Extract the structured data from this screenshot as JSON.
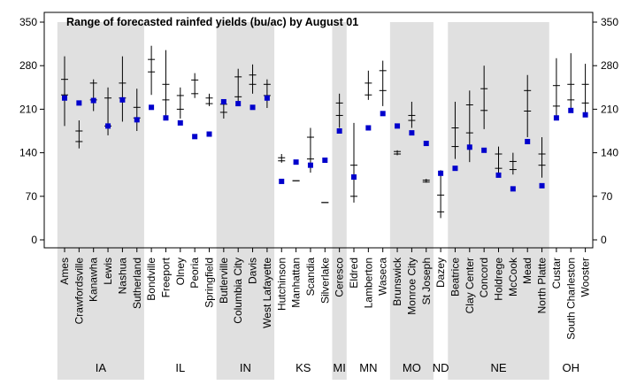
{
  "chart_data": {
    "type": "range",
    "title": "Range of forecasted rainfed yields (bu/ac) by August 01",
    "ylim": [
      0,
      350
    ],
    "yticks": [
      0,
      70,
      140,
      210,
      280,
      350
    ],
    "colors": {
      "marker": "#0000cc",
      "range": "#000000",
      "band": "#e0e0e0"
    },
    "groups": [
      {
        "state": "IA",
        "sites": [
          {
            "name": "Ames",
            "min": 183,
            "q1": 233,
            "q3": 258,
            "max": 295,
            "point": 228
          },
          {
            "name": "Crawfordsville",
            "min": 147,
            "q1": 158,
            "q3": 175,
            "max": 192,
            "point": 220
          },
          {
            "name": "Kanawha",
            "min": 207,
            "q1": 225,
            "q3": 252,
            "max": 258,
            "point": 224
          },
          {
            "name": "Lewis",
            "min": 168,
            "q1": 183,
            "q3": 228,
            "max": 245,
            "point": 183
          },
          {
            "name": "Nashua",
            "min": 190,
            "q1": 228,
            "q3": 252,
            "max": 295,
            "point": 225
          },
          {
            "name": "Sutherland",
            "min": 175,
            "q1": 196,
            "q3": 213,
            "max": 243,
            "point": 193
          }
        ]
      },
      {
        "state": "IL",
        "sites": [
          {
            "name": "Bondville",
            "min": 233,
            "q1": 270,
            "q3": 290,
            "max": 312,
            "point": 213
          },
          {
            "name": "Freeport",
            "min": 193,
            "q1": 225,
            "q3": 250,
            "max": 305,
            "point": 196
          },
          {
            "name": "Olney",
            "min": 195,
            "q1": 210,
            "q3": 232,
            "max": 245,
            "point": 188
          },
          {
            "name": "Peoria",
            "min": 228,
            "q1": 235,
            "q3": 257,
            "max": 268,
            "point": 166
          },
          {
            "name": "Springfield",
            "min": 215,
            "q1": 219,
            "q3": 228,
            "max": 235,
            "point": 170
          }
        ]
      },
      {
        "state": "IN",
        "sites": [
          {
            "name": "Butlerville",
            "min": 195,
            "q1": 205,
            "q3": 218,
            "max": 222,
            "point": 222
          },
          {
            "name": "Columbia City",
            "min": 220,
            "q1": 230,
            "q3": 262,
            "max": 275,
            "point": 219
          },
          {
            "name": "Davis",
            "min": 235,
            "q1": 250,
            "q3": 265,
            "max": 282,
            "point": 213
          },
          {
            "name": "West Lafayette",
            "min": 212,
            "q1": 232,
            "q3": 250,
            "max": 258,
            "point": 228
          }
        ]
      },
      {
        "state": "KS",
        "sites": [
          {
            "name": "Hutchinson",
            "min": 124,
            "q1": 127,
            "q3": 132,
            "max": 138,
            "point": 94
          },
          {
            "name": "Manhattan",
            "min": 95,
            "q1": 95,
            "q3": 95,
            "max": 95,
            "point": 125
          },
          {
            "name": "Scandia",
            "min": 108,
            "q1": 130,
            "q3": 165,
            "max": 180,
            "point": 120
          },
          {
            "name": "Silverlake",
            "min": 60,
            "q1": 60,
            "q3": 60,
            "max": 60,
            "point": 128
          }
        ]
      },
      {
        "state": "MI",
        "sites": [
          {
            "name": "Ceresco",
            "min": 180,
            "q1": 200,
            "q3": 220,
            "max": 235,
            "point": 175
          }
        ]
      },
      {
        "state": "MN",
        "sites": [
          {
            "name": "Eldred",
            "min": 60,
            "q1": 70,
            "q3": 120,
            "max": 188,
            "point": 101
          },
          {
            "name": "Lamberton",
            "min": 225,
            "q1": 233,
            "q3": 252,
            "max": 272,
            "point": 180
          },
          {
            "name": "Waseca",
            "min": 215,
            "q1": 240,
            "q3": 272,
            "max": 288,
            "point": 203
          }
        ]
      },
      {
        "state": "MO",
        "sites": [
          {
            "name": "Brunswick",
            "min": 136,
            "q1": 138,
            "q3": 142,
            "max": 144,
            "point": 183
          },
          {
            "name": "Monroe City",
            "min": 180,
            "q1": 192,
            "q3": 200,
            "max": 222,
            "point": 172
          },
          {
            "name": "St Joseph",
            "min": 92,
            "q1": 93,
            "q3": 96,
            "max": 98,
            "point": 155
          }
        ]
      },
      {
        "state": "ND",
        "sites": [
          {
            "name": "Dazey",
            "min": 35,
            "q1": 45,
            "q3": 72,
            "max": 112,
            "point": 107
          }
        ]
      },
      {
        "state": "NE",
        "sites": [
          {
            "name": "Beatrice",
            "min": 130,
            "q1": 150,
            "q3": 180,
            "max": 222,
            "point": 115
          },
          {
            "name": "Clay Center",
            "min": 125,
            "q1": 172,
            "q3": 217,
            "max": 240,
            "point": 149
          },
          {
            "name": "Concord",
            "min": 178,
            "q1": 208,
            "q3": 243,
            "max": 280,
            "point": 144
          },
          {
            "name": "Holdrege",
            "min": 105,
            "q1": 115,
            "q3": 138,
            "max": 150,
            "point": 104
          },
          {
            "name": "McCook",
            "min": 105,
            "q1": 113,
            "q3": 126,
            "max": 140,
            "point": 82
          },
          {
            "name": "Mead",
            "min": 165,
            "q1": 207,
            "q3": 240,
            "max": 265,
            "point": 158
          },
          {
            "name": "North Platte",
            "min": 100,
            "q1": 120,
            "q3": 138,
            "max": 165,
            "point": 87
          }
        ]
      },
      {
        "state": "OH",
        "sites": [
          {
            "name": "Custar",
            "min": 195,
            "q1": 215,
            "q3": 248,
            "max": 292,
            "point": 196
          },
          {
            "name": "South Charleston",
            "min": 210,
            "q1": 225,
            "q3": 250,
            "max": 300,
            "point": 208
          },
          {
            "name": "Wooster",
            "min": 200,
            "q1": 220,
            "q3": 250,
            "max": 283,
            "point": 201
          }
        ]
      }
    ]
  }
}
